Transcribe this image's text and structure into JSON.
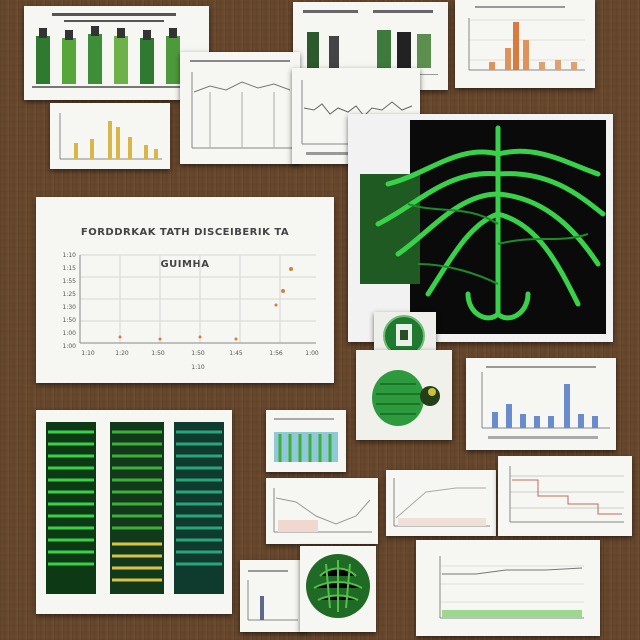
{
  "scene": {
    "description_free": true,
    "colors": {
      "desk": "#6b4a2e",
      "paper": "#f6f6f2",
      "green_bright": "#39d04a",
      "green_dark": "#0d3a14",
      "bar_yellow": "#d8b64a",
      "bar_orange": "#e0925a",
      "bar_blue": "#6a8ccc"
    }
  },
  "main_chart": {
    "title_line1": "FORDDRKAK TATH DISCEIBERIK TA",
    "title_line2": "GUIMHA",
    "y_ticks": [
      "1:10",
      "1:15",
      "1:55",
      "1:25",
      "1:30",
      "1:50",
      "1:00",
      "1:00"
    ],
    "x_ticks": [
      "1:10",
      "1:20",
      "1:50",
      "1:50",
      "1:45",
      "1:56",
      "1:00"
    ],
    "x_caption": "1:10"
  }
}
